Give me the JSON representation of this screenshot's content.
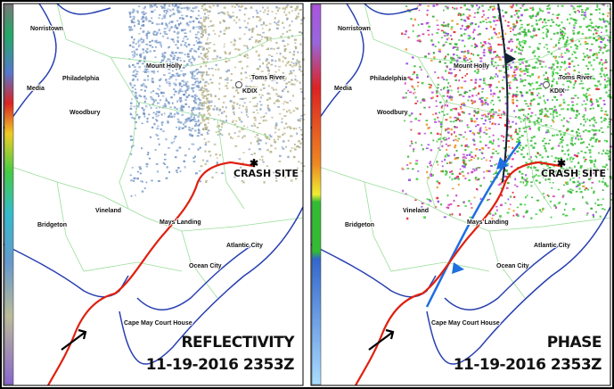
{
  "panels": [
    {
      "title": "REFLECTIVITY",
      "timestamp": "11-19-2016 2353Z",
      "crash_label": "CRASH SITE",
      "radar": "KDIX",
      "places": [
        "Norristown",
        "Philadelphia",
        "Mount Holly",
        "Toms River",
        "Media",
        "Woodbury",
        "Vineland",
        "Bridgeton",
        "Mays Landing",
        "Atlantic City",
        "Ocean City",
        "Cape May Court House"
      ]
    },
    {
      "title": "PHASE",
      "timestamp": "11-19-2016 2353Z",
      "crash_label": "CRASH SITE",
      "radar": "KDIX",
      "places": [
        "Norristown",
        "Philadelphia",
        "Mount Holly",
        "Toms River",
        "Media",
        "Woodbury",
        "Vineland",
        "Bridgeton",
        "Mays Landing",
        "Atlantic City",
        "Ocean City",
        "Cape May Court House"
      ]
    }
  ]
}
